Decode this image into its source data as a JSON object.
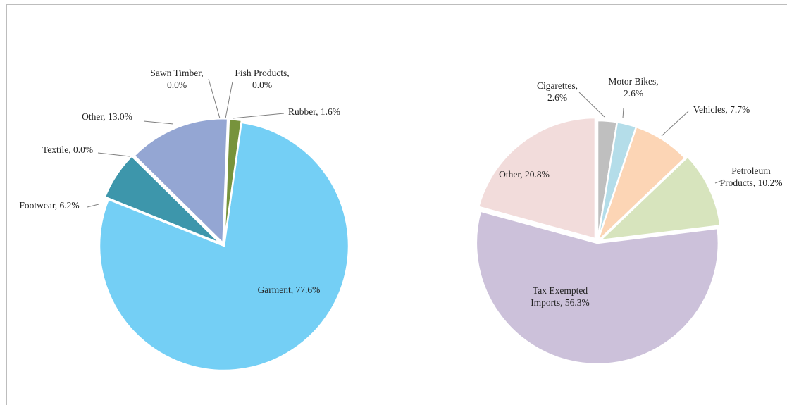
{
  "chart_data": [
    {
      "type": "pie",
      "slices": [
        {
          "label": "Garment, 77.6%",
          "value": 77.6,
          "color": "#74cff5"
        },
        {
          "label": "Footwear, 6.2%",
          "value": 6.2,
          "color": "#3d96ab"
        },
        {
          "label": "Textile, 0.0%",
          "value": 0.0,
          "color": "#3d96ab"
        },
        {
          "label": "Other, 13.0%",
          "value": 13.0,
          "color": "#94a6d3"
        },
        {
          "label": "Sawn Timber,|0.0%",
          "value": 0.0,
          "color": "#94a6d3"
        },
        {
          "label": "Fish Products,|0.0%",
          "value": 0.0,
          "color": "#77933c"
        },
        {
          "label": "Rubber, 1.6%",
          "value": 1.6,
          "color": "#77933c"
        }
      ]
    },
    {
      "type": "pie",
      "slices": [
        {
          "label": "Cigarettes,|2.6%",
          "value": 2.6,
          "color": "#bfbfbf"
        },
        {
          "label": "Motor Bikes,|2.6%",
          "value": 2.6,
          "color": "#b4dde9"
        },
        {
          "label": "Vehicles, 7.7%",
          "value": 7.7,
          "color": "#fcd5b5"
        },
        {
          "label": "Petroleum|Products, 10.2%",
          "value": 10.2,
          "color": "#d7e4bd"
        },
        {
          "label": "Tax Exempted|Imports, 56.3%",
          "value": 56.3,
          "color": "#ccc1da"
        },
        {
          "label": "Other, 20.8%",
          "value": 20.8,
          "color": "#f2dcdb"
        }
      ]
    }
  ]
}
